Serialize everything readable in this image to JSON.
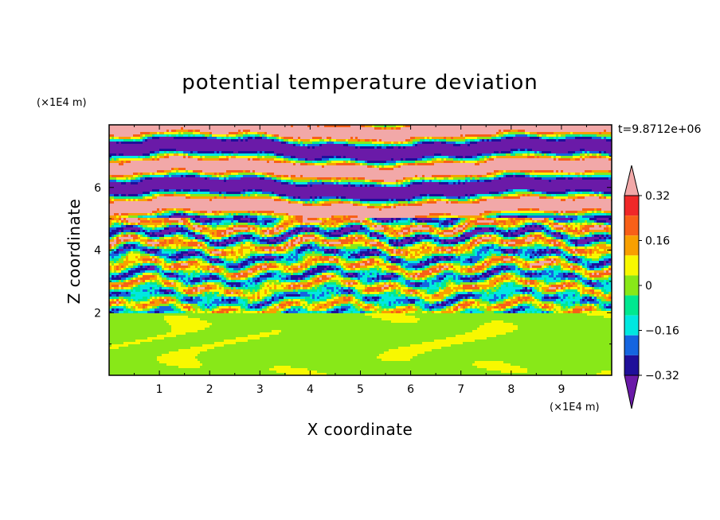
{
  "chart_data": {
    "type": "heatmap",
    "title": "potential temperature deviation",
    "xlabel": "X coordinate",
    "ylabel": "Z coordinate",
    "x_unit": "(×1E4 m)",
    "y_unit": "(×1E4 m)",
    "time_label": "t=9.8712e+06",
    "xlim": [
      0,
      10
    ],
    "ylim": [
      0,
      8
    ],
    "x_ticks": [
      "1",
      "2",
      "3",
      "4",
      "5",
      "6",
      "7",
      "8",
      "9"
    ],
    "y_ticks": [
      "2",
      "4",
      "6"
    ],
    "colorbar": {
      "tick_labels": [
        "0.32",
        "0.16",
        "0",
        "−0.16",
        "−0.32"
      ],
      "tick_values": [
        0.32,
        0.16,
        0,
        -0.16,
        -0.32
      ],
      "levels": [
        -0.4,
        -0.32,
        -0.24,
        -0.16,
        -0.08,
        0,
        0.08,
        0.16,
        0.24,
        0.32,
        0.4
      ],
      "colors": [
        "#5b0fa8",
        "#1f0f9a",
        "#1565e0",
        "#00e8e0",
        "#00e890",
        "#88e818",
        "#f8f800",
        "#f8a000",
        "#f86018",
        "#f02828",
        "#f2a8a8"
      ],
      "under_color": "#6a1aa8",
      "over_color": "#f2a8a8",
      "extend": "both"
    },
    "field_regions": [
      {
        "z_range": [
          0,
          2.0
        ],
        "pattern": "low-amplitude mixed layer, values near 0 to 0.08",
        "dominant_colors": [
          "#00e890",
          "#88e818"
        ]
      },
      {
        "z_range": [
          2.0,
          5.0
        ],
        "pattern": "fine-scale turbulent structures spanning full color range",
        "dominant_colors": [
          "#00e8e0",
          "#00e890",
          "#88e818",
          "#f8f800",
          "#1f0f9a"
        ]
      },
      {
        "z_range": [
          5.0,
          8.0
        ],
        "pattern": "alternating horizontal bands of extreme positive and negative values",
        "dominant_colors": [
          "#f2a8a8",
          "#6a1aa8"
        ]
      }
    ],
    "grid": false,
    "colorbar_placement": "right"
  }
}
